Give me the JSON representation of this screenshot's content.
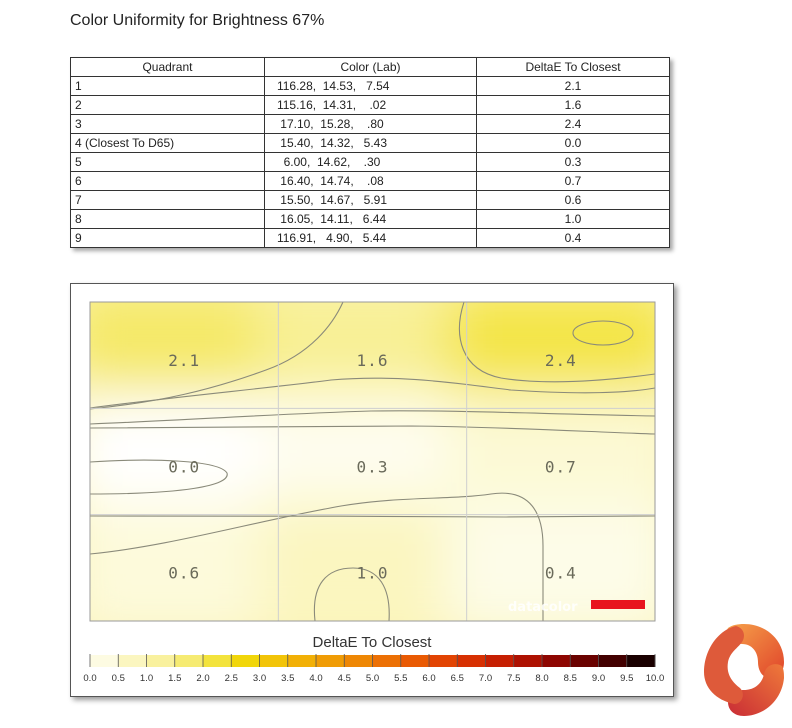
{
  "title": "Color Uniformity for Brightness 67%",
  "table": {
    "headers": [
      "Quadrant",
      "Color (Lab)",
      "DeltaE To Closest"
    ],
    "rows": [
      {
        "quadrant": "1",
        "lab": "116.28,  14.53,   7.54",
        "delta": "2.1"
      },
      {
        "quadrant": "2",
        "lab": "115.16,  14.31,    .02",
        "delta": "1.6"
      },
      {
        "quadrant": "3",
        "lab": " 17.10,  15.28,    .80",
        "delta": "2.4"
      },
      {
        "quadrant": "4 (Closest To D65)",
        "lab": " 15.40,  14.32,   5.43",
        "delta": "0.0"
      },
      {
        "quadrant": "5",
        "lab": "  6.00,  14.62,    .30",
        "delta": "0.3"
      },
      {
        "quadrant": "6",
        "lab": " 16.40,  14.74,    .08",
        "delta": "0.7"
      },
      {
        "quadrant": "7",
        "lab": " 15.50,  14.67,   5.91",
        "delta": "0.6"
      },
      {
        "quadrant": "8",
        "lab": " 16.05,  14.11,   6.44",
        "delta": "1.0"
      },
      {
        "quadrant": "9",
        "lab": "116.91,   4.90,   5.44",
        "delta": "0.4"
      }
    ]
  },
  "chart_data": {
    "type": "heatmap",
    "title": "DeltaE To Closest",
    "grid": {
      "rows": 3,
      "cols": 3
    },
    "values": [
      [
        2.1,
        1.6,
        2.4
      ],
      [
        0.0,
        0.3,
        0.7
      ],
      [
        0.6,
        1.0,
        0.4
      ]
    ],
    "value_labels": [
      [
        "2.1",
        "1.6",
        "2.4"
      ],
      [
        "0.0",
        "0.3",
        "0.7"
      ],
      [
        "0.6",
        "1.0",
        "0.4"
      ]
    ],
    "color_scale": {
      "min": 0,
      "max": 10,
      "step": 0.5,
      "tick_labels": [
        "0.0",
        "0.5",
        "1.0",
        "1.5",
        "2.0",
        "2.5",
        "3.0",
        "3.5",
        "4.0",
        "4.5",
        "5.0",
        "5.5",
        "6.0",
        "6.5",
        "7.0",
        "7.5",
        "8.0",
        "8.5",
        "9.0",
        "9.5",
        "10.0"
      ],
      "colors": [
        "#ffffff",
        "#fdfbe2",
        "#fbf6c0",
        "#f9f19e",
        "#f6eb72",
        "#f3e33c",
        "#f1d60a",
        "#f2c408",
        "#f2b006",
        "#f09c05",
        "#ee8704",
        "#ec7004",
        "#e95a03",
        "#e24403",
        "#d73002",
        "#c61f02",
        "#ae1101",
        "#8e0601",
        "#6a0200",
        "#430000",
        "#1a0000"
      ]
    },
    "watermark": "datacolor",
    "accent_color": "#e8141e"
  }
}
